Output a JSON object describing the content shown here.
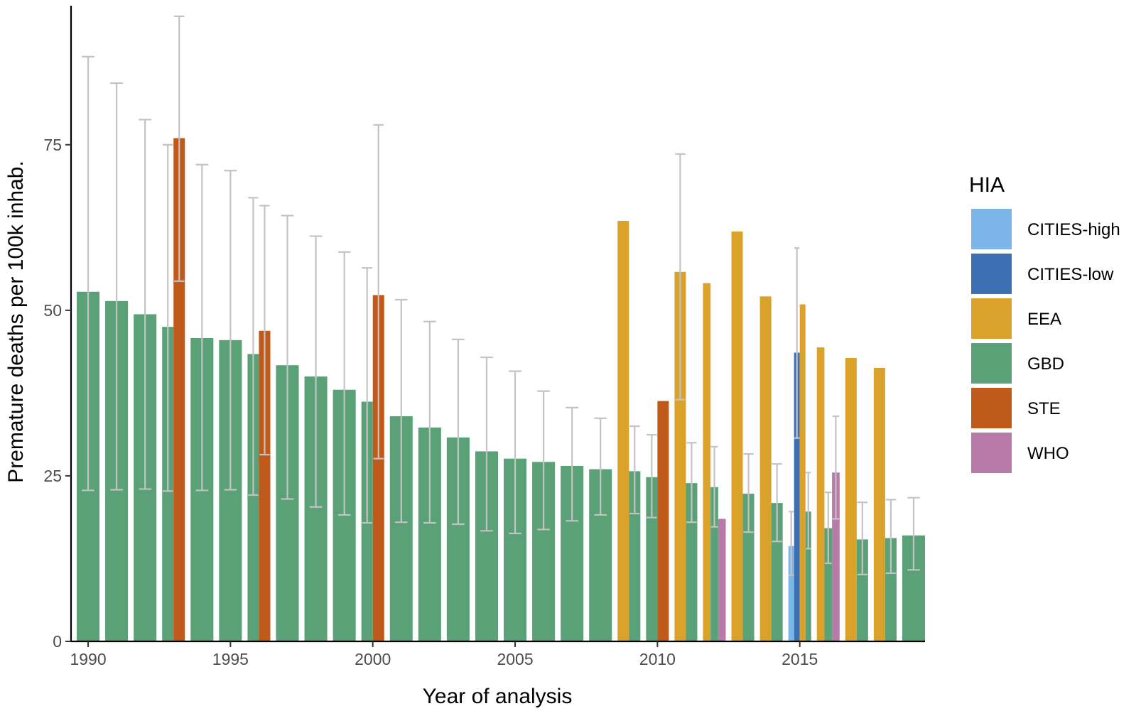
{
  "chart_data": {
    "type": "bar",
    "xlabel": "Year of analysis",
    "ylabel": "Premature deaths per 100k inhab.",
    "xlim": [
      1989.4,
      2019.4
    ],
    "ylim": [
      0,
      96
    ],
    "x_ticks": [
      1990,
      1995,
      2000,
      2005,
      2010,
      2015
    ],
    "y_ticks": [
      0,
      25,
      50,
      75
    ],
    "grid": false,
    "legend": {
      "title": "HIA",
      "position": "right",
      "entries": [
        "CITIES-high",
        "CITIES-low",
        "EEA",
        "GBD",
        "STE",
        "WHO"
      ]
    },
    "colors": {
      "CITIES-high": "#7cb5e8",
      "CITIES-low": "#3d70b3",
      "EEA": "#dba22b",
      "GBD": "#5aa177",
      "STE": "#c05a1a",
      "WHO": "#b87aa8",
      "error_bar": "#c3c3c3"
    },
    "series": [
      {
        "name": "GBD",
        "points": [
          {
            "x": 1990,
            "y": 52.8,
            "lo": 22.8,
            "hi": 88.3
          },
          {
            "x": 1991,
            "y": 51.4,
            "lo": 22.9,
            "hi": 84.3
          },
          {
            "x": 1992,
            "y": 49.4,
            "lo": 23.0,
            "hi": 78.8
          },
          {
            "x": 1993,
            "y": 47.5,
            "lo": 22.7,
            "hi": 75.0
          },
          {
            "x": 1994,
            "y": 45.8,
            "lo": 22.8,
            "hi": 72.0
          },
          {
            "x": 1995,
            "y": 45.5,
            "lo": 22.9,
            "hi": 71.1
          },
          {
            "x": 1996,
            "y": 43.4,
            "lo": 22.1,
            "hi": 67.0
          },
          {
            "x": 1997,
            "y": 41.7,
            "lo": 21.5,
            "hi": 64.3
          },
          {
            "x": 1998,
            "y": 40.0,
            "lo": 20.3,
            "hi": 61.2
          },
          {
            "x": 1999,
            "y": 38.0,
            "lo": 19.1,
            "hi": 58.8
          },
          {
            "x": 2000,
            "y": 36.2,
            "lo": 17.9,
            "hi": 56.4
          },
          {
            "x": 2001,
            "y": 34.0,
            "lo": 18.0,
            "hi": 51.6
          },
          {
            "x": 2002,
            "y": 32.3,
            "lo": 17.9,
            "hi": 48.3
          },
          {
            "x": 2003,
            "y": 30.8,
            "lo": 17.7,
            "hi": 45.6
          },
          {
            "x": 2004,
            "y": 28.7,
            "lo": 16.7,
            "hi": 42.9
          },
          {
            "x": 2005,
            "y": 27.6,
            "lo": 16.3,
            "hi": 40.8
          },
          {
            "x": 2006,
            "y": 27.1,
            "lo": 16.9,
            "hi": 37.8
          },
          {
            "x": 2007,
            "y": 26.5,
            "lo": 18.2,
            "hi": 35.3
          },
          {
            "x": 2008,
            "y": 26.0,
            "lo": 19.1,
            "hi": 33.7
          },
          {
            "x": 2009,
            "y": 25.7,
            "lo": 19.3,
            "hi": 32.5
          },
          {
            "x": 2010,
            "y": 24.8,
            "lo": 18.7,
            "hi": 31.2
          },
          {
            "x": 2011,
            "y": 23.9,
            "lo": 18.0,
            "hi": 30.0
          },
          {
            "x": 2012,
            "y": 23.3,
            "lo": 17.3,
            "hi": 29.4
          },
          {
            "x": 2013,
            "y": 22.3,
            "lo": 16.5,
            "hi": 28.3
          },
          {
            "x": 2014,
            "y": 20.9,
            "lo": 15.1,
            "hi": 26.8
          },
          {
            "x": 2015,
            "y": 19.6,
            "lo": 14.0,
            "hi": 25.5
          },
          {
            "x": 2016,
            "y": 17.1,
            "lo": 11.8,
            "hi": 22.5
          },
          {
            "x": 2017,
            "y": 15.4,
            "lo": 10.1,
            "hi": 21.0
          },
          {
            "x": 2018,
            "y": 15.6,
            "lo": 10.3,
            "hi": 21.4
          },
          {
            "x": 2019,
            "y": 16.0,
            "lo": 10.8,
            "hi": 21.7
          }
        ]
      },
      {
        "name": "STE",
        "points": [
          {
            "x": 1993,
            "y": 76.0,
            "lo": 54.4,
            "hi": 94.4
          },
          {
            "x": 1996,
            "y": 46.9,
            "lo": 28.2,
            "hi": 65.8
          },
          {
            "x": 2000,
            "y": 52.3,
            "lo": 27.6,
            "hi": 78.0
          },
          {
            "x": 2010,
            "y": 36.3,
            "lo": null,
            "hi": null
          }
        ]
      },
      {
        "name": "EEA",
        "points": [
          {
            "x": 2009,
            "y": 63.5,
            "lo": null,
            "hi": null
          },
          {
            "x": 2011,
            "y": 55.8,
            "lo": 36.5,
            "hi": 73.6
          },
          {
            "x": 2012,
            "y": 54.1,
            "lo": null,
            "hi": null
          },
          {
            "x": 2013,
            "y": 61.9,
            "lo": null,
            "hi": null
          },
          {
            "x": 2014,
            "y": 52.1,
            "lo": null,
            "hi": null
          },
          {
            "x": 2015,
            "y": 50.9,
            "lo": null,
            "hi": null
          },
          {
            "x": 2016,
            "y": 44.4,
            "lo": null,
            "hi": null
          },
          {
            "x": 2017,
            "y": 42.8,
            "lo": null,
            "hi": null
          },
          {
            "x": 2018,
            "y": 41.3,
            "lo": null,
            "hi": null
          }
        ]
      },
      {
        "name": "WHO",
        "points": [
          {
            "x": 2012,
            "y": 18.5,
            "lo": null,
            "hi": null
          },
          {
            "x": 2016,
            "y": 25.5,
            "lo": 18.5,
            "hi": 34.0
          }
        ]
      },
      {
        "name": "CITIES-high",
        "points": [
          {
            "x": 2015,
            "y": 14.4,
            "lo": 10.0,
            "hi": 19.6
          }
        ]
      },
      {
        "name": "CITIES-low",
        "points": [
          {
            "x": 2015,
            "y": 43.6,
            "lo": 30.7,
            "hi": 59.4
          }
        ]
      }
    ]
  }
}
